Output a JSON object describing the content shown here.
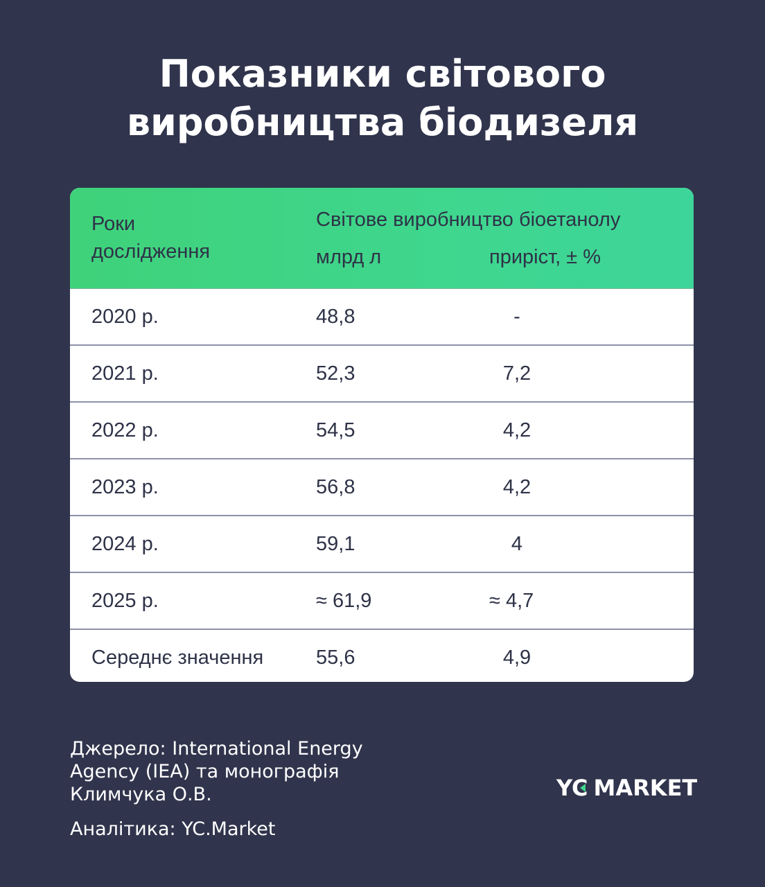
{
  "title": {
    "line1": "Показники світового",
    "line2": "виробництва біодизеля"
  },
  "table": {
    "header": {
      "years_line1": "Роки",
      "years_line2": "дослідження",
      "group": "Світове виробництво біоетанолу",
      "col_volume": "млрд л",
      "col_growth": "приріст, ± %"
    },
    "rows": [
      {
        "year": "2020 р.",
        "volume": "48,8",
        "growth": "-"
      },
      {
        "year": "2021 р.",
        "volume": "52,3",
        "growth": "7,2"
      },
      {
        "year": "2022 р.",
        "volume": "54,5",
        "growth": "4,2"
      },
      {
        "year": "2023 р.",
        "volume": "56,8",
        "growth": "4,2"
      },
      {
        "year": "2024 р.",
        "volume": "59,1",
        "growth": "4"
      },
      {
        "year": "2025 р.",
        "volume": "≈ 61,9",
        "growth": "≈ 4,7"
      },
      {
        "year": "Середнє значення",
        "volume": "55,6",
        "growth": "4,9"
      }
    ]
  },
  "footer": {
    "source": "Джерело: International Energy Agency (IEA) та монографія Климчука О.В.",
    "analytics": "Аналітика: YC.Market",
    "logo_left": "YC",
    "logo_right": "MARKET"
  },
  "colors": {
    "background": "#30344c",
    "header_green": "#3fd68e",
    "text_dark": "#2e3247",
    "accent": "#3fd68e"
  }
}
